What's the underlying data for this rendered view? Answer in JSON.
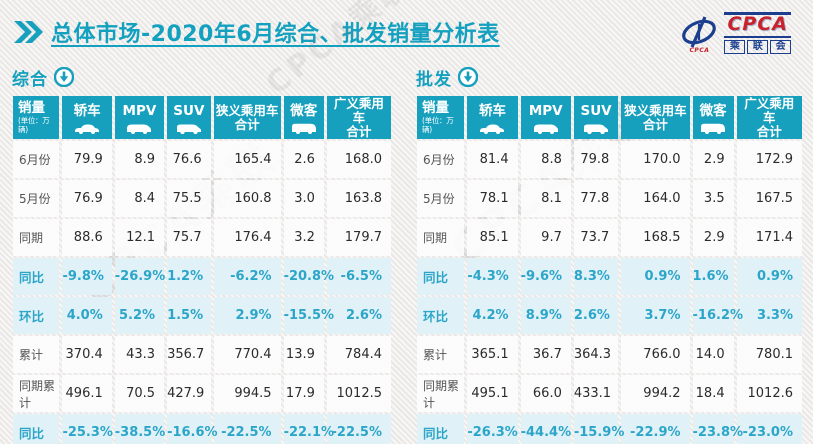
{
  "page": {
    "title": "总体市场-2020年6月综合、批发销量分析表",
    "watermark": "CPCA乘联"
  },
  "logo": {
    "swoosh_icon": "cpca-swoosh-icon",
    "swoosh_caption": "CPCA",
    "acronym": "CPCA",
    "cn_name": "乘联会"
  },
  "colors": {
    "teal": "#17a0be",
    "percent_text": "#2ba6c9",
    "percent_row_bg": "#e1f1f8",
    "normal_row_bg": "#fcfcfc",
    "logo_blue": "#1b3e8f",
    "logo_red": "#c8232c"
  },
  "columns": [
    {
      "label": "销量",
      "sub": "(单位：万辆)",
      "icon": ""
    },
    {
      "label": "轿车",
      "icon": "sedan-icon"
    },
    {
      "label": "MPV",
      "icon": "mpv-icon"
    },
    {
      "label": "SUV",
      "icon": "suv-icon"
    },
    {
      "label": "狭义乘用车",
      "label2": "合计",
      "icon": ""
    },
    {
      "label": "微客",
      "icon": "microvan-icon"
    },
    {
      "label": "广义乘用车",
      "label2": "合计",
      "icon": ""
    }
  ],
  "chart_data": [
    {
      "type": "table",
      "title": "综合",
      "columns": [
        "销量(单位：万辆)",
        "轿车",
        "MPV",
        "SUV",
        "狭义乘用车合计",
        "微客",
        "广义乘用车合计"
      ],
      "rows": [
        {
          "label": "6月份",
          "style": "normal",
          "values": [
            "79.9",
            "8.9",
            "76.6",
            "165.4",
            "2.6",
            "168.0"
          ]
        },
        {
          "label": "5月份",
          "style": "normal",
          "values": [
            "76.9",
            "8.4",
            "75.5",
            "160.8",
            "3.0",
            "163.8"
          ]
        },
        {
          "label": "同期",
          "style": "normal",
          "values": [
            "88.6",
            "12.1",
            "75.7",
            "176.4",
            "3.2",
            "179.7"
          ]
        },
        {
          "label": "同比",
          "style": "percent",
          "values": [
            "-9.8%",
            "-26.9%",
            "1.2%",
            "-6.2%",
            "-20.8%",
            "-6.5%"
          ]
        },
        {
          "label": "环比",
          "style": "percent",
          "values": [
            "4.0%",
            "5.2%",
            "1.5%",
            "2.9%",
            "-15.5%",
            "2.6%"
          ]
        },
        {
          "label": "累计",
          "style": "normal",
          "values": [
            "370.4",
            "43.3",
            "356.7",
            "770.4",
            "13.9",
            "784.4"
          ]
        },
        {
          "label": "同期累计",
          "style": "normal",
          "values": [
            "496.1",
            "70.5",
            "427.9",
            "994.5",
            "17.9",
            "1012.5"
          ]
        },
        {
          "label": "同比",
          "style": "percent",
          "values": [
            "-25.3%",
            "-38.5%",
            "-16.6%",
            "-22.5%",
            "-22.1%",
            "-22.5%"
          ]
        }
      ]
    },
    {
      "type": "table",
      "title": "批发",
      "columns": [
        "销量(单位：万辆)",
        "轿车",
        "MPV",
        "SUV",
        "狭义乘用车合计",
        "微客",
        "广义乘用车合计"
      ],
      "rows": [
        {
          "label": "6月份",
          "style": "normal",
          "values": [
            "81.4",
            "8.8",
            "79.8",
            "170.0",
            "2.9",
            "172.9"
          ]
        },
        {
          "label": "5月份",
          "style": "normal",
          "values": [
            "78.1",
            "8.1",
            "77.8",
            "164.0",
            "3.5",
            "167.5"
          ]
        },
        {
          "label": "同期",
          "style": "normal",
          "values": [
            "85.1",
            "9.7",
            "73.7",
            "168.5",
            "2.9",
            "171.4"
          ]
        },
        {
          "label": "同比",
          "style": "percent",
          "values": [
            "-4.3%",
            "-9.6%",
            "8.3%",
            "0.9%",
            "1.6%",
            "0.9%"
          ]
        },
        {
          "label": "环比",
          "style": "percent",
          "values": [
            "4.2%",
            "8.9%",
            "2.6%",
            "3.7%",
            "-16.2%",
            "3.3%"
          ]
        },
        {
          "label": "累计",
          "style": "normal",
          "values": [
            "365.1",
            "36.7",
            "364.3",
            "766.0",
            "14.0",
            "780.1"
          ]
        },
        {
          "label": "同期累计",
          "style": "normal",
          "values": [
            "495.1",
            "66.0",
            "433.1",
            "994.2",
            "18.4",
            "1012.6"
          ]
        },
        {
          "label": "同比",
          "style": "percent",
          "values": [
            "-26.3%",
            "-44.4%",
            "-15.9%",
            "-22.9%",
            "-23.8%",
            "-23.0%"
          ]
        }
      ]
    }
  ]
}
